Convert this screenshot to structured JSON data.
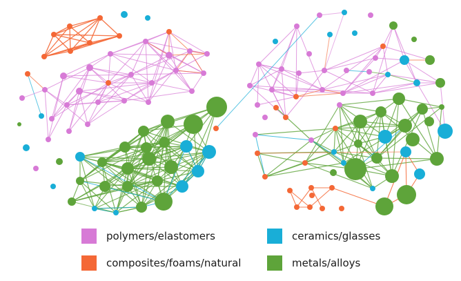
{
  "categories": [
    {
      "key": "poly",
      "label": "polymers/elastomers",
      "color": "#d77ad6"
    },
    {
      "key": "comp",
      "label": "composites/foams/natural",
      "color": "#f46836"
    },
    {
      "key": "cer",
      "label": "ceramics/glasses",
      "color": "#19aed7"
    },
    {
      "key": "met",
      "label": "metals/alloys",
      "color": "#5ea43a"
    }
  ]
}
